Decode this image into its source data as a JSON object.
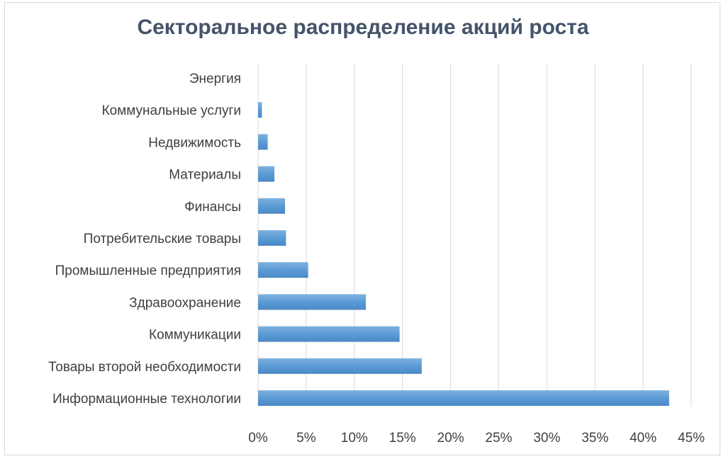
{
  "chart_data": {
    "type": "bar",
    "orientation": "horizontal",
    "title": "Секторальное распределение акций роста",
    "categories": [
      "Информационные технологии",
      "Товары второй необходимости",
      "Коммуникации",
      "Здравоохранение",
      "Промышленные предприятия",
      "Потребительские товары",
      "Финансы",
      "Материалы",
      "Недвижимость",
      "Коммунальные услуги",
      "Энергия"
    ],
    "values": [
      42.7,
      17.0,
      14.7,
      11.2,
      5.2,
      2.9,
      2.8,
      1.7,
      1.0,
      0.4,
      0.0
    ],
    "xlim": [
      0,
      45
    ],
    "xticks": [
      "0%",
      "5%",
      "10%",
      "15%",
      "20%",
      "25%",
      "30%",
      "35%",
      "40%",
      "45%"
    ],
    "value_unit": "%",
    "grid": "vertical",
    "legend": "none",
    "colors": {
      "bar": "#5b9bd5",
      "bar_light": "#7fb2e0",
      "bar_dark": "#4a89c6",
      "grid": "#d9d9d9",
      "label_text": "#404040",
      "title_text": "#44546a"
    }
  }
}
